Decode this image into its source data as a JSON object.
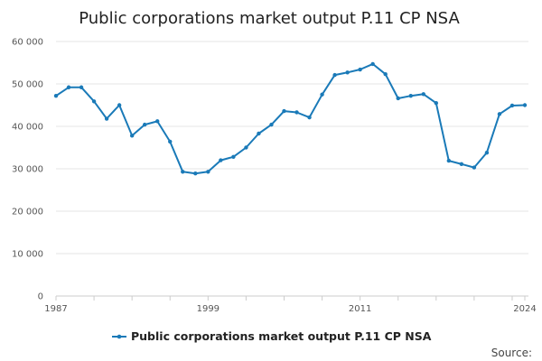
{
  "chart_data": {
    "type": "line",
    "title": "Public corporations market output P.11 CP NSA",
    "xlabel": "",
    "ylabel": "",
    "ylim": [
      0,
      60000
    ],
    "xlim": [
      1987,
      2024
    ],
    "y_ticks": [
      0,
      10000,
      20000,
      30000,
      40000,
      50000,
      60000
    ],
    "y_tick_labels": [
      "0",
      "10 000",
      "20 000",
      "30 000",
      "40 000",
      "50 000",
      "60 000"
    ],
    "x_ticks": [
      1987,
      1999,
      2011,
      2024
    ],
    "x_tick_labels": [
      "1987",
      "1999",
      "2011",
      "2024"
    ],
    "grid": true,
    "legend": "bottom",
    "series": [
      {
        "name": "Public corporations market output P.11 CP NSA",
        "color": "#1a7ab8",
        "x": [
          1987,
          1988,
          1989,
          1990,
          1991,
          1992,
          1993,
          1994,
          1995,
          1996,
          1997,
          1998,
          1999,
          2000,
          2001,
          2002,
          2003,
          2004,
          2005,
          2006,
          2007,
          2008,
          2009,
          2010,
          2011,
          2012,
          2013,
          2014,
          2015,
          2016,
          2017,
          2018,
          2019,
          2020,
          2021,
          2022,
          2023,
          2024
        ],
        "values": [
          47200,
          49200,
          49200,
          45900,
          41800,
          45000,
          37800,
          40400,
          41200,
          36400,
          29300,
          28900,
          29300,
          32000,
          32800,
          35000,
          38300,
          40400,
          43600,
          43300,
          42100,
          47500,
          52100,
          52700,
          53400,
          54700,
          52300,
          46600,
          47200,
          47600,
          45500,
          31900,
          31100,
          30300,
          33800,
          42900,
          44900,
          45000
        ]
      }
    ]
  },
  "footer": {
    "source_label": "Source:"
  }
}
